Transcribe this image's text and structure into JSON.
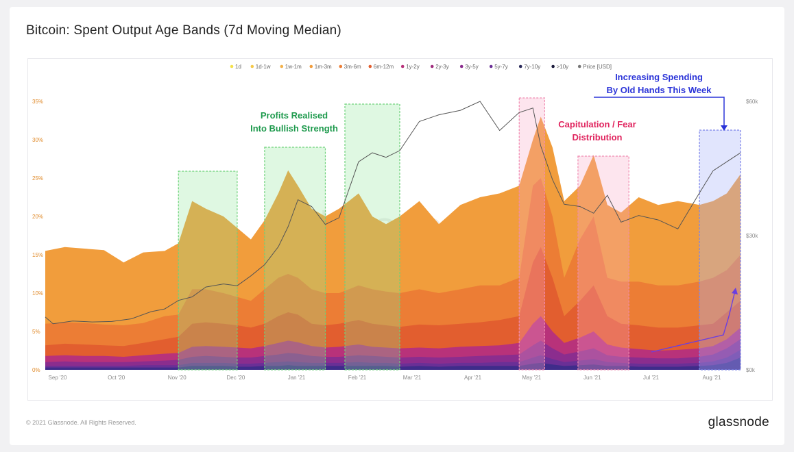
{
  "page": {
    "title": "Bitcoin: Spent Output Age Bands (7d Moving Median)",
    "footer": "© 2021 Glassnode. All Rights Reserved.",
    "brand": "glassnode",
    "watermark": "glassnode"
  },
  "chart_data": {
    "type": "area",
    "stacked": true,
    "title": "Bitcoin: Spent Output Age Bands (7d Moving Median)",
    "x_dates": [
      "2020-09-01",
      "2020-09-11",
      "2020-09-21",
      "2020-10-01",
      "2020-10-11",
      "2020-10-21",
      "2020-11-01",
      "2020-11-08",
      "2020-11-15",
      "2020-11-22",
      "2020-12-01",
      "2020-12-08",
      "2020-12-15",
      "2020-12-22",
      "2020-12-29",
      "2021-01-03",
      "2021-01-08",
      "2021-01-15",
      "2021-01-22",
      "2021-01-29",
      "2021-02-08",
      "2021-02-15",
      "2021-02-22",
      "2021-03-01",
      "2021-03-11",
      "2021-03-21",
      "2021-04-01",
      "2021-04-11",
      "2021-04-21",
      "2021-05-01",
      "2021-05-08",
      "2021-05-12",
      "2021-05-18",
      "2021-05-24",
      "2021-06-01",
      "2021-06-08",
      "2021-06-15",
      "2021-06-22",
      "2021-07-01",
      "2021-07-11",
      "2021-07-21",
      "2021-08-01",
      "2021-08-08",
      "2021-08-15",
      "2021-08-22"
    ],
    "x_ticks": [
      "Sep '20",
      "Oct '20",
      "Nov '20",
      "Dec '20",
      "Jan '21",
      "Feb '21",
      "Mar '21",
      "Apr '21",
      "May '21",
      "Jun '21",
      "Jul '21",
      "Aug '21"
    ],
    "y_left_ticks": [
      "0%",
      "5%",
      "10%",
      "15%",
      "20%",
      "25%",
      "30%",
      "35%"
    ],
    "y_left_range": [
      0,
      35
    ],
    "y_right_ticks": [
      "$0k",
      "$30k",
      "$60k"
    ],
    "y_right_range": [
      0,
      60000
    ],
    "series": [
      {
        "name": "1w-1m",
        "color": "#f19d3c",
        "values": [
          15.5,
          16,
          15.8,
          15.6,
          14,
          15.3,
          15.5,
          16.5,
          22,
          21,
          20,
          18.5,
          17,
          19.5,
          23,
          26,
          24,
          21,
          20,
          21,
          23,
          20,
          19,
          20,
          22,
          19,
          21.5,
          22.5,
          23,
          24,
          30,
          33,
          29,
          22,
          24,
          28,
          21.5,
          20.5,
          22.5,
          21.5,
          22,
          21.5,
          22,
          23,
          25.5
        ]
      },
      {
        "name": "1m-3m",
        "color": "#ec7d35",
        "values": [
          6,
          6.2,
          6.1,
          5.9,
          5.8,
          6.1,
          7,
          7.2,
          10.5,
          10.5,
          10,
          9.5,
          9,
          10.5,
          12,
          12.5,
          12,
          10.5,
          10,
          10,
          11,
          10.5,
          10.2,
          10,
          10.5,
          10,
          10.5,
          11,
          11,
          12,
          24,
          25,
          20,
          12,
          17,
          20,
          12,
          11.5,
          11.5,
          11,
          11,
          11.5,
          12,
          13,
          15
        ]
      },
      {
        "name": "3m-6m",
        "color": "#e25e2f",
        "values": [
          3.2,
          3.4,
          3.3,
          3.2,
          3.1,
          3.5,
          4,
          4.3,
          6,
          6.2,
          6,
          5.8,
          5.5,
          6,
          7,
          7.5,
          7.2,
          6,
          5.8,
          6,
          6.5,
          6,
          5.8,
          5.6,
          5.9,
          5.8,
          6,
          6.2,
          6.5,
          7,
          14,
          16,
          12,
          7,
          9,
          11,
          7,
          6,
          5.8,
          5.5,
          5.5,
          5.8,
          6,
          7.5,
          9
        ]
      },
      {
        "name": "6m-12m",
        "color": "#b8327a",
        "values": [
          1.8,
          1.9,
          1.8,
          1.8,
          1.7,
          1.9,
          2.1,
          2.2,
          3,
          3.1,
          3,
          2.9,
          2.8,
          3.1,
          3.5,
          3.8,
          3.6,
          3.1,
          2.9,
          3,
          3.3,
          3,
          2.9,
          2.8,
          2.9,
          2.8,
          3,
          3.1,
          3.2,
          3.5,
          6,
          7,
          5,
          3.5,
          4.2,
          5,
          3.3,
          2.9,
          2.7,
          2.5,
          2.6,
          2.8,
          3.1,
          4,
          5.5
        ]
      },
      {
        "name": "1y-2y",
        "color": "#8b2d8e",
        "values": [
          1,
          1.1,
          1,
          1,
          1,
          1.1,
          1.2,
          1.3,
          1.7,
          1.8,
          1.7,
          1.6,
          1.6,
          1.8,
          2,
          2.2,
          2.1,
          1.8,
          1.7,
          1.7,
          1.9,
          1.8,
          1.7,
          1.6,
          1.7,
          1.6,
          1.7,
          1.8,
          1.9,
          2,
          3.2,
          3.8,
          2.8,
          2,
          2.4,
          2.8,
          1.9,
          1.7,
          1.6,
          1.5,
          1.5,
          1.7,
          2,
          2.8,
          4
        ]
      },
      {
        "name": "2y-3y",
        "color": "#6a2f96",
        "values": [
          0.5,
          0.5,
          0.5,
          0.5,
          0.5,
          0.6,
          0.6,
          0.6,
          0.9,
          0.9,
          0.9,
          0.8,
          0.8,
          0.9,
          1,
          1.1,
          1,
          0.9,
          0.9,
          0.9,
          1,
          0.9,
          0.9,
          0.8,
          0.9,
          0.8,
          0.9,
          0.9,
          1,
          1,
          1.6,
          1.9,
          1.4,
          1,
          1.2,
          1.4,
          1,
          0.9,
          0.8,
          0.8,
          0.8,
          0.9,
          1.1,
          1.6,
          2.6
        ]
      },
      {
        "name": ">10y",
        "color": "#3f2c8a",
        "values": [
          0.3,
          0.3,
          0.3,
          0.3,
          0.3,
          0.3,
          0.3,
          0.3,
          0.5,
          0.5,
          0.5,
          0.4,
          0.4,
          0.5,
          0.5,
          0.6,
          0.5,
          0.5,
          0.5,
          0.5,
          0.5,
          0.5,
          0.5,
          0.4,
          0.5,
          0.4,
          0.5,
          0.5,
          0.5,
          0.5,
          0.8,
          0.9,
          0.7,
          0.5,
          0.6,
          0.7,
          0.5,
          0.5,
          0.4,
          0.4,
          0.4,
          0.5,
          0.6,
          0.9,
          1.6
        ]
      }
    ],
    "price": {
      "name": "Price [USD]",
      "color": "#555555",
      "x_dates": [
        "2020-09-01",
        "2020-09-05",
        "2020-09-15",
        "2020-09-25",
        "2020-10-05",
        "2020-10-15",
        "2020-10-25",
        "2020-11-01",
        "2020-11-08",
        "2020-11-15",
        "2020-11-22",
        "2020-12-01",
        "2020-12-08",
        "2020-12-15",
        "2020-12-22",
        "2020-12-29",
        "2021-01-03",
        "2021-01-08",
        "2021-01-15",
        "2021-01-22",
        "2021-01-29",
        "2021-02-08",
        "2021-02-15",
        "2021-02-22",
        "2021-03-01",
        "2021-03-11",
        "2021-03-21",
        "2021-04-01",
        "2021-04-11",
        "2021-04-21",
        "2021-05-01",
        "2021-05-08",
        "2021-05-12",
        "2021-05-18",
        "2021-05-24",
        "2021-06-01",
        "2021-06-08",
        "2021-06-15",
        "2021-06-22",
        "2021-07-01",
        "2021-07-11",
        "2021-07-21",
        "2021-08-01",
        "2021-08-08",
        "2021-08-15",
        "2021-08-22"
      ],
      "values": [
        11800,
        10300,
        10900,
        10700,
        10800,
        11400,
        13000,
        13600,
        15500,
        16300,
        18500,
        19200,
        18800,
        21000,
        23500,
        27500,
        32000,
        38000,
        36500,
        32500,
        34000,
        46500,
        48500,
        47500,
        49000,
        55500,
        57000,
        58000,
        60000,
        53500,
        57500,
        58500,
        50000,
        42500,
        37000,
        36500,
        35000,
        39000,
        33000,
        34500,
        33500,
        31500,
        39500,
        44500,
        46500,
        48500
      ]
    },
    "legend": [
      "1d",
      "1d-1w",
      "1w-1m",
      "1m-3m",
      "3m-6m",
      "6m-12m",
      "1y-2y",
      "2y-3y",
      "3y-5y",
      "5y-7y",
      "7y-10y",
      ">10y",
      "Price [USD]"
    ],
    "legend_colors": [
      "#f5e14a",
      "#f5c94a",
      "#f3b24a",
      "#f19d3c",
      "#ec7d35",
      "#e25e2f",
      "#b8327a",
      "#a02c7d",
      "#8b2d8e",
      "#6a2f96",
      "#2a2a5a",
      "#1c1c3c",
      "#777777"
    ],
    "legend_placement": "top-right",
    "grid": false,
    "highlights": [
      {
        "start": "2020-11-08",
        "end": "2020-12-08",
        "kind": "green"
      },
      {
        "start": "2020-12-22",
        "end": "2021-01-22",
        "kind": "green"
      },
      {
        "start": "2021-02-01",
        "end": "2021-03-01",
        "kind": "green"
      },
      {
        "start": "2021-05-01",
        "end": "2021-05-14",
        "kind": "pink"
      },
      {
        "start": "2021-05-31",
        "end": "2021-06-26",
        "kind": "pink"
      },
      {
        "start": "2021-08-01",
        "end": "2021-08-22",
        "kind": "blue"
      }
    ],
    "annotations": [
      {
        "lines": [
          "Profits Realised",
          "Into Bullish Strength"
        ],
        "color": "#1e9a4d"
      },
      {
        "lines": [
          "Capitulation / Fear",
          "Distribution"
        ],
        "color": "#e0245e"
      },
      {
        "lines": [
          "Increasing Spending",
          "By Old Hands This Week"
        ],
        "color": "#2a33d8"
      }
    ],
    "colors": {
      "green_box_fill": "rgba(140,230,150,0.28)",
      "green_box_stroke": "#6ed27a",
      "pink_box_fill": "rgba(250,170,200,0.30)",
      "pink_box_stroke": "#f08ab0",
      "blue_box_fill": "rgba(170,180,250,0.35)",
      "blue_box_stroke": "#7b83e8",
      "arrow": "#6b3fe0"
    }
  }
}
